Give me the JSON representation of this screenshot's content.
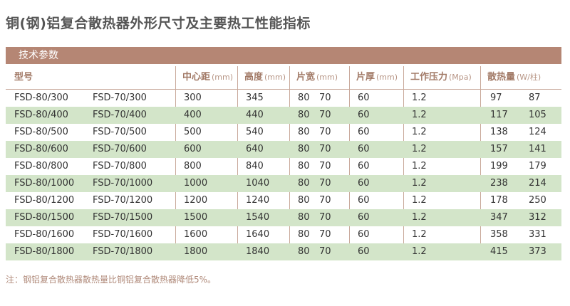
{
  "title": "铜(钢)铝复合散热器外形尺寸及主要热工性能指标",
  "section_label": "技术参数",
  "headers": {
    "model": {
      "label": "型号",
      "unit": ""
    },
    "center_distance": {
      "label": "中心距",
      "unit": "(mm)"
    },
    "height": {
      "label": "高度",
      "unit": "(mm)"
    },
    "piece_width": {
      "label": "片宽",
      "unit": "(mm)"
    },
    "piece_thickness": {
      "label": "片厚",
      "unit": "(mm)"
    },
    "working_pressure": {
      "label": "工作压力",
      "unit": "(Mpa)"
    },
    "heat_output": {
      "label": "散热量",
      "unit": "(W/柱)"
    }
  },
  "rows": [
    {
      "model_a": "FSD-80/300",
      "model_b": "FSD-70/300",
      "center": "300",
      "height": "345",
      "width_a": "80",
      "width_b": "70",
      "thickness": "60",
      "pressure": "1.2",
      "heat_a": "97",
      "heat_b": "87"
    },
    {
      "model_a": "FSD-80/400",
      "model_b": "FSD-70/400",
      "center": "400",
      "height": "440",
      "width_a": "80",
      "width_b": "70",
      "thickness": "60",
      "pressure": "1.2",
      "heat_a": "117",
      "heat_b": "105"
    },
    {
      "model_a": "FSD-80/500",
      "model_b": "FSD-70/500",
      "center": "500",
      "height": "540",
      "width_a": "80",
      "width_b": "70",
      "thickness": "60",
      "pressure": "1.2",
      "heat_a": "138",
      "heat_b": "124"
    },
    {
      "model_a": "FSD-80/600",
      "model_b": "FSD-70/600",
      "center": "600",
      "height": "640",
      "width_a": "80",
      "width_b": "70",
      "thickness": "60",
      "pressure": "1.2",
      "heat_a": "157",
      "heat_b": "141"
    },
    {
      "model_a": "FSD-80/800",
      "model_b": "FSD-70/800",
      "center": "800",
      "height": "840",
      "width_a": "80",
      "width_b": "70",
      "thickness": "60",
      "pressure": "1.2",
      "heat_a": "199",
      "heat_b": "179"
    },
    {
      "model_a": "FSD-80/1000",
      "model_b": "FSD-70/1000",
      "center": "1000",
      "height": "1040",
      "width_a": "80",
      "width_b": "70",
      "thickness": "60",
      "pressure": "1.2",
      "heat_a": "238",
      "heat_b": "214"
    },
    {
      "model_a": "FSD-80/1200",
      "model_b": "FSD-70/1200",
      "center": "1200",
      "height": "1240",
      "width_a": "80",
      "width_b": "70",
      "thickness": "60",
      "pressure": "1.2",
      "heat_a": "178",
      "heat_b": "250"
    },
    {
      "model_a": "FSD-80/1500",
      "model_b": "FSD-70/1500",
      "center": "1500",
      "height": "1540",
      "width_a": "80",
      "width_b": "70",
      "thickness": "60",
      "pressure": "1.2",
      "heat_a": "347",
      "heat_b": "312"
    },
    {
      "model_a": "FSD-80/1600",
      "model_b": "FSD-70/1600",
      "center": "1600",
      "height": "1640",
      "width_a": "80",
      "width_b": "70",
      "thickness": "60",
      "pressure": "1.2",
      "heat_a": "358",
      "heat_b": "331"
    },
    {
      "model_a": "FSD-80/1800",
      "model_b": "FSD-70/1800",
      "center": "1800",
      "height": "1840",
      "width_a": "80",
      "width_b": "70",
      "thickness": "60",
      "pressure": "1.2",
      "heat_a": "415",
      "heat_b": "373"
    }
  ],
  "note": "注：钢铝复合散热器散热量比铜铝复合散热器降低5%。",
  "colors": {
    "accent_bar": "#b58674",
    "header_text": "#a27a67",
    "alt_row": "#d3e5c9"
  }
}
